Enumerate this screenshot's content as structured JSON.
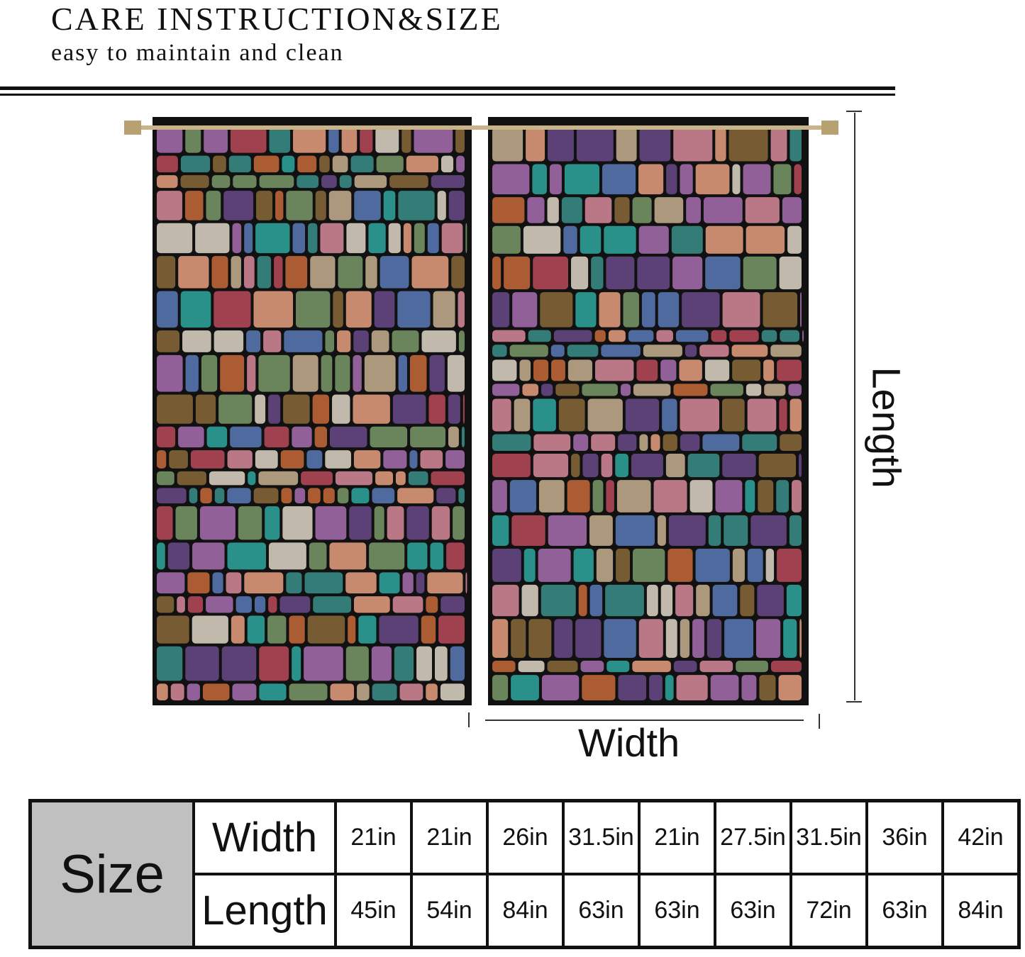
{
  "header": {
    "title": "CARE INSTRUCTION&SIZE",
    "subtitle": "easy to maintain and clean"
  },
  "diagram": {
    "length_label": "Length",
    "width_label": "Width",
    "colors": {
      "lead": "#111111",
      "rod": "#c9b48a"
    }
  },
  "size_table": {
    "header": "Size",
    "rows": [
      {
        "label": "Width",
        "values": [
          "21in",
          "21in",
          "26in",
          "31.5in",
          "21in",
          "27.5in",
          "31.5in",
          "36in",
          "42in"
        ]
      },
      {
        "label": "Length",
        "values": [
          "45in",
          "54in",
          "84in",
          "63in",
          "63in",
          "63in",
          "72in",
          "63in",
          "84in"
        ]
      }
    ],
    "header_bg": "#c0c0c0"
  }
}
